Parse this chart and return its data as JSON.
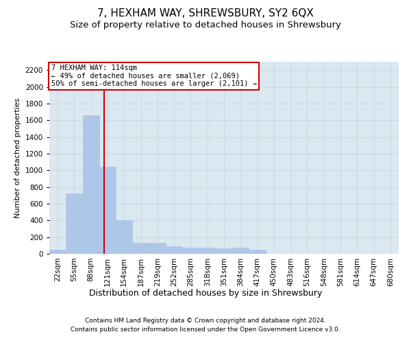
{
  "title": "7, HEXHAM WAY, SHREWSBURY, SY2 6QX",
  "subtitle": "Size of property relative to detached houses in Shrewsbury",
  "xlabel": "Distribution of detached houses by size in Shrewsbury",
  "ylabel": "Number of detached properties",
  "footer_line1": "Contains HM Land Registry data © Crown copyright and database right 2024.",
  "footer_line2": "Contains public sector information licensed under the Open Government Licence v3.0.",
  "categories": [
    "22sqm",
    "55sqm",
    "88sqm",
    "121sqm",
    "154sqm",
    "187sqm",
    "219sqm",
    "252sqm",
    "285sqm",
    "318sqm",
    "351sqm",
    "384sqm",
    "417sqm",
    "450sqm",
    "483sqm",
    "516sqm",
    "548sqm",
    "581sqm",
    "614sqm",
    "647sqm",
    "680sqm"
  ],
  "values": [
    50,
    720,
    1660,
    1040,
    400,
    130,
    130,
    90,
    75,
    70,
    65,
    70,
    50,
    0,
    0,
    0,
    0,
    0,
    0,
    0,
    0
  ],
  "bar_color": "#aec6e8",
  "bar_edge_color": "#aec6e8",
  "grid_color": "#c8d8e8",
  "background_color": "#dce8f0",
  "vline_color": "#cc0000",
  "annotation_line1": "7 HEXHAM WAY: 114sqm",
  "annotation_line2": "← 49% of detached houses are smaller (2,069)",
  "annotation_line3": "50% of semi-detached houses are larger (2,101) →",
  "annotation_box_edge": "#cc0000",
  "ylim": [
    0,
    2300
  ],
  "yticks": [
    0,
    200,
    400,
    600,
    800,
    1000,
    1200,
    1400,
    1600,
    1800,
    2000,
    2200
  ],
  "title_fontsize": 11,
  "subtitle_fontsize": 9.5,
  "xlabel_fontsize": 9,
  "ylabel_fontsize": 8,
  "annotation_fontsize": 7.5,
  "footer_fontsize": 6.5,
  "tick_fontsize": 7.5
}
